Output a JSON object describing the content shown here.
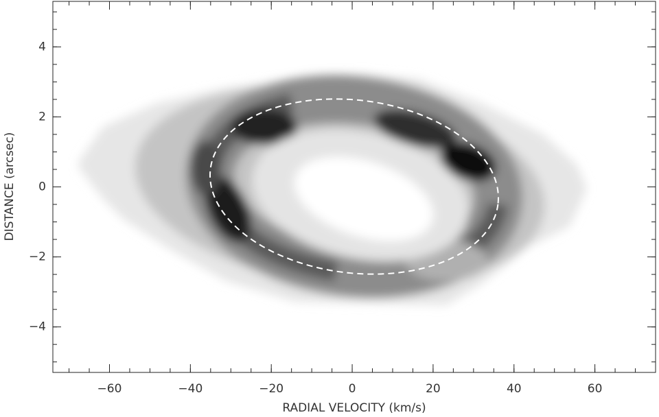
{
  "chart_data": {
    "type": "image",
    "xlabel": "RADIAL VELOCITY (km/s)",
    "ylabel": "DISTANCE  (arcsec)",
    "xlim": [
      -74,
      75
    ],
    "ylim": [
      -5.3,
      5.3
    ],
    "xticks": [
      {
        "value": -60,
        "label": "−60"
      },
      {
        "value": -40,
        "label": "−40"
      },
      {
        "value": -20,
        "label": "−20"
      },
      0,
      20,
      40,
      60
    ],
    "yticks": [
      {
        "value": -4,
        "label": "−4"
      },
      {
        "value": -2,
        "label": "−2"
      },
      0,
      2,
      4
    ],
    "xminorticks": [
      -70,
      -65,
      -60,
      -55,
      -50,
      -45,
      -40,
      -35,
      -30,
      -25,
      -20,
      -15,
      -10,
      -5,
      0,
      5,
      10,
      15,
      20,
      25,
      30,
      35,
      40,
      45,
      50,
      55,
      60,
      65,
      70
    ],
    "yminorticks": [
      -5,
      -4.5,
      -4,
      -3.5,
      -3,
      -2.5,
      -2,
      -1.5,
      -1,
      -0.5,
      0,
      0.5,
      1,
      1.5,
      2,
      2.5,
      3,
      3.5,
      4,
      4.5,
      5
    ]
  }
}
